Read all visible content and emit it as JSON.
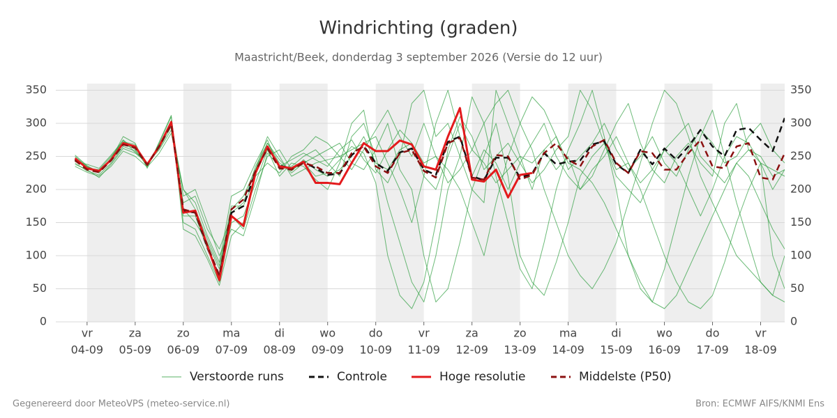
{
  "chart_data": {
    "type": "line",
    "title": "Windrichting (graden)",
    "subtitle": "Maastricht/Beek, donderdag  3 september 2026 (Versie do 12 uur)",
    "footer_left": "Gegenereerd door MeteoVPS (meteo-service.nl)",
    "footer_right": "Bron: ECMWF AIFS/KNMI Ens",
    "x": [
      3.75,
      4,
      4.25,
      4.5,
      4.75,
      5,
      5.25,
      5.5,
      5.75,
      6,
      6.25,
      6.5,
      6.75,
      7,
      7.25,
      7.5,
      7.75,
      8,
      8.25,
      8.5,
      8.75,
      9,
      9.25,
      9.5,
      9.75,
      10,
      10.25,
      10.5,
      10.75,
      11,
      11.25,
      11.5,
      11.75,
      12,
      12.25,
      12.5,
      12.75,
      13,
      13.25,
      13.5,
      13.75,
      14,
      14.25,
      14.5,
      14.75,
      15,
      15.25,
      15.5,
      15.75,
      16,
      16.25,
      16.5,
      16.75,
      17,
      17.25,
      17.5,
      17.75,
      18,
      18.25,
      18.5
    ],
    "xlim": [
      3.35,
      18.5
    ],
    "xticks": [
      {
        "value": 4,
        "label": "04-09"
      },
      {
        "value": 5,
        "label": "05-09"
      },
      {
        "value": 6,
        "label": "06-09"
      },
      {
        "value": 7,
        "label": "07-09"
      },
      {
        "value": 8,
        "label": "08-09"
      },
      {
        "value": 9,
        "label": "09-09"
      },
      {
        "value": 10,
        "label": "10-09"
      },
      {
        "value": 11,
        "label": "11-09"
      },
      {
        "value": 12,
        "label": "12-09"
      },
      {
        "value": 13,
        "label": "13-09"
      },
      {
        "value": 14,
        "label": "14-09"
      },
      {
        "value": 15,
        "label": "15-09"
      },
      {
        "value": 16,
        "label": "16-09"
      },
      {
        "value": 17,
        "label": "17-09"
      },
      {
        "value": 18,
        "label": "18-09"
      }
    ],
    "xtick_weekdays": [
      "vr",
      "za",
      "zo",
      "ma",
      "di",
      "wo",
      "do",
      "vr",
      "za",
      "zo",
      "ma",
      "di",
      "wo",
      "do",
      "vr"
    ],
    "ylim": [
      0,
      360
    ],
    "yticks": [
      0,
      50,
      100,
      150,
      200,
      250,
      300,
      350
    ],
    "grid": true,
    "day_shading": true,
    "legend": "bottom",
    "series": [
      {
        "name": "Verstoorde runs",
        "color": "#2e9e3e",
        "members": [
          [
            250,
            235,
            225,
            248,
            275,
            260,
            235,
            270,
            310,
            170,
            150,
            120,
            80,
            170,
            190,
            230,
            270,
            240,
            228,
            245,
            230,
            220,
            230,
            250,
            280,
            240,
            230,
            260,
            270,
            220,
            200,
            250,
            300,
            260,
            240,
            210,
            230,
            250,
            240,
            260,
            280,
            230,
            250,
            270,
            300,
            260,
            230,
            250,
            280,
            240,
            220,
            260,
            290,
            270,
            240,
            250,
            280,
            300,
            260,
            240
          ],
          [
            240,
            228,
            222,
            240,
            265,
            258,
            240,
            262,
            295,
            200,
            180,
            130,
            90,
            190,
            200,
            240,
            275,
            230,
            235,
            250,
            260,
            240,
            220,
            280,
            300,
            250,
            180,
            120,
            60,
            30,
            100,
            200,
            250,
            340,
            300,
            220,
            150,
            80,
            50,
            120,
            200,
            260,
            300,
            350,
            280,
            200,
            100,
            50,
            30,
            80,
            150,
            220,
            280,
            320,
            250,
            180,
            120,
            60,
            40,
            100
          ],
          [
            245,
            232,
            230,
            250,
            272,
            268,
            236,
            268,
            300,
            150,
            140,
            100,
            60,
            150,
            160,
            210,
            260,
            220,
            240,
            235,
            215,
            200,
            240,
            300,
            320,
            230,
            210,
            250,
            330,
            350,
            280,
            300,
            250,
            200,
            180,
            350,
            300,
            250,
            200,
            260,
            230,
            250,
            200,
            220,
            260,
            300,
            330,
            270,
            230,
            210,
            250,
            270,
            240,
            220,
            300,
            330,
            260,
            240,
            200,
            230
          ],
          [
            238,
            230,
            218,
            238,
            262,
            255,
            240,
            260,
            290,
            180,
            190,
            140,
            110,
            160,
            140,
            200,
            250,
            260,
            230,
            240,
            250,
            260,
            270,
            240,
            230,
            260,
            300,
            230,
            200,
            100,
            30,
            50,
            120,
            200,
            250,
            300,
            220,
            100,
            60,
            40,
            90,
            150,
            220,
            250,
            270,
            230,
            240,
            200,
            150,
            100,
            60,
            30,
            20,
            40,
            90,
            150,
            200,
            240,
            100,
            50
          ],
          [
            252,
            236,
            226,
            246,
            280,
            270,
            232,
            272,
            312,
            140,
            130,
            95,
            55,
            130,
            150,
            230,
            280,
            250,
            220,
            230,
            240,
            245,
            250,
            260,
            270,
            280,
            240,
            200,
            150,
            220,
            300,
            350,
            280,
            220,
            260,
            240,
            200,
            240,
            270,
            300,
            250,
            220,
            200,
            230,
            250,
            280,
            240,
            210,
            230,
            260,
            280,
            300,
            250,
            230,
            210,
            240,
            260,
            250,
            220,
            230
          ],
          [
            235,
            226,
            220,
            235,
            258,
            250,
            234,
            255,
            285,
            200,
            170,
            125,
            85,
            175,
            175,
            220,
            240,
            225,
            250,
            260,
            280,
            270,
            250,
            230,
            260,
            290,
            320,
            280,
            250,
            300,
            250,
            210,
            230,
            260,
            300,
            330,
            350,
            300,
            260,
            200,
            150,
            100,
            70,
            50,
            80,
            120,
            180,
            240,
            300,
            350,
            330,
            280,
            220,
            180,
            140,
            100,
            80,
            60,
            40,
            30
          ],
          [
            248,
            234,
            228,
            244,
            268,
            262,
            238,
            266,
            298,
            160,
            160,
            110,
            70,
            165,
            180,
            235,
            270,
            245,
            225,
            240,
            220,
            225,
            245,
            265,
            255,
            210,
            100,
            40,
            20,
            60,
            150,
            260,
            310,
            280,
            230,
            250,
            270,
            240,
            210,
            230,
            260,
            280,
            350,
            320,
            270,
            220,
            200,
            180,
            220,
            260,
            240,
            200,
            160,
            200,
            250,
            280,
            270,
            240,
            230,
            220
          ],
          [
            242,
            238,
            232,
            252,
            274,
            256,
            240,
            264,
            304,
            190,
            200,
            150,
            100,
            140,
            130,
            190,
            255,
            235,
            245,
            255,
            245,
            235,
            260,
            275,
            245,
            225,
            260,
            290,
            270,
            240,
            250,
            230,
            200,
            150,
            100,
            180,
            250,
            300,
            340,
            320,
            280,
            240,
            230,
            210,
            180,
            140,
            100,
            60,
            30,
            20,
            40,
            80,
            120,
            160,
            200,
            240,
            220,
            180,
            140,
            110
          ]
        ]
      },
      {
        "name": "Controle",
        "color": "#111111",
        "dash": true,
        "values": [
          245,
          231,
          227,
          244,
          268,
          264,
          238,
          266,
          300,
          168,
          165,
          112,
          68,
          165,
          175,
          226,
          265,
          236,
          232,
          242,
          232,
          222,
          224,
          252,
          266,
          240,
          228,
          256,
          262,
          230,
          222,
          272,
          280,
          220,
          214,
          248,
          248,
          218,
          224,
          255,
          238,
          242,
          244,
          268,
          273,
          238,
          225,
          260,
          238,
          262,
          245,
          265,
          290,
          265,
          250,
          290,
          293,
          275,
          258,
          308
        ]
      },
      {
        "name": "Hoge resolutie",
        "color": "#e31a1c",
        "values": [
          247,
          232,
          228,
          245,
          270,
          265,
          238,
          265,
          302,
          165,
          168,
          115,
          63,
          160,
          145,
          225,
          265,
          235,
          232,
          242,
          210,
          210,
          208,
          240,
          270,
          258,
          258,
          274,
          268,
          235,
          230,
          280,
          323,
          215,
          212,
          230,
          188,
          222,
          225,
          null,
          null,
          null,
          null,
          null,
          null,
          null,
          null,
          null,
          null,
          null,
          null,
          null,
          null,
          null,
          null,
          null,
          null,
          null,
          null,
          null
        ]
      },
      {
        "name": "Middelste (P50)",
        "color": "#8b1010",
        "dash": true,
        "values": [
          244,
          230,
          226,
          244,
          268,
          263,
          237,
          265,
          298,
          170,
          165,
          115,
          70,
          170,
          185,
          228,
          262,
          232,
          230,
          240,
          235,
          225,
          225,
          255,
          265,
          235,
          225,
          255,
          260,
          228,
          218,
          270,
          278,
          218,
          215,
          252,
          250,
          215,
          222,
          255,
          270,
          245,
          235,
          265,
          275,
          240,
          225,
          258,
          255,
          230,
          230,
          255,
          275,
          235,
          232,
          265,
          270,
          218,
          215,
          255
        ]
      }
    ]
  }
}
